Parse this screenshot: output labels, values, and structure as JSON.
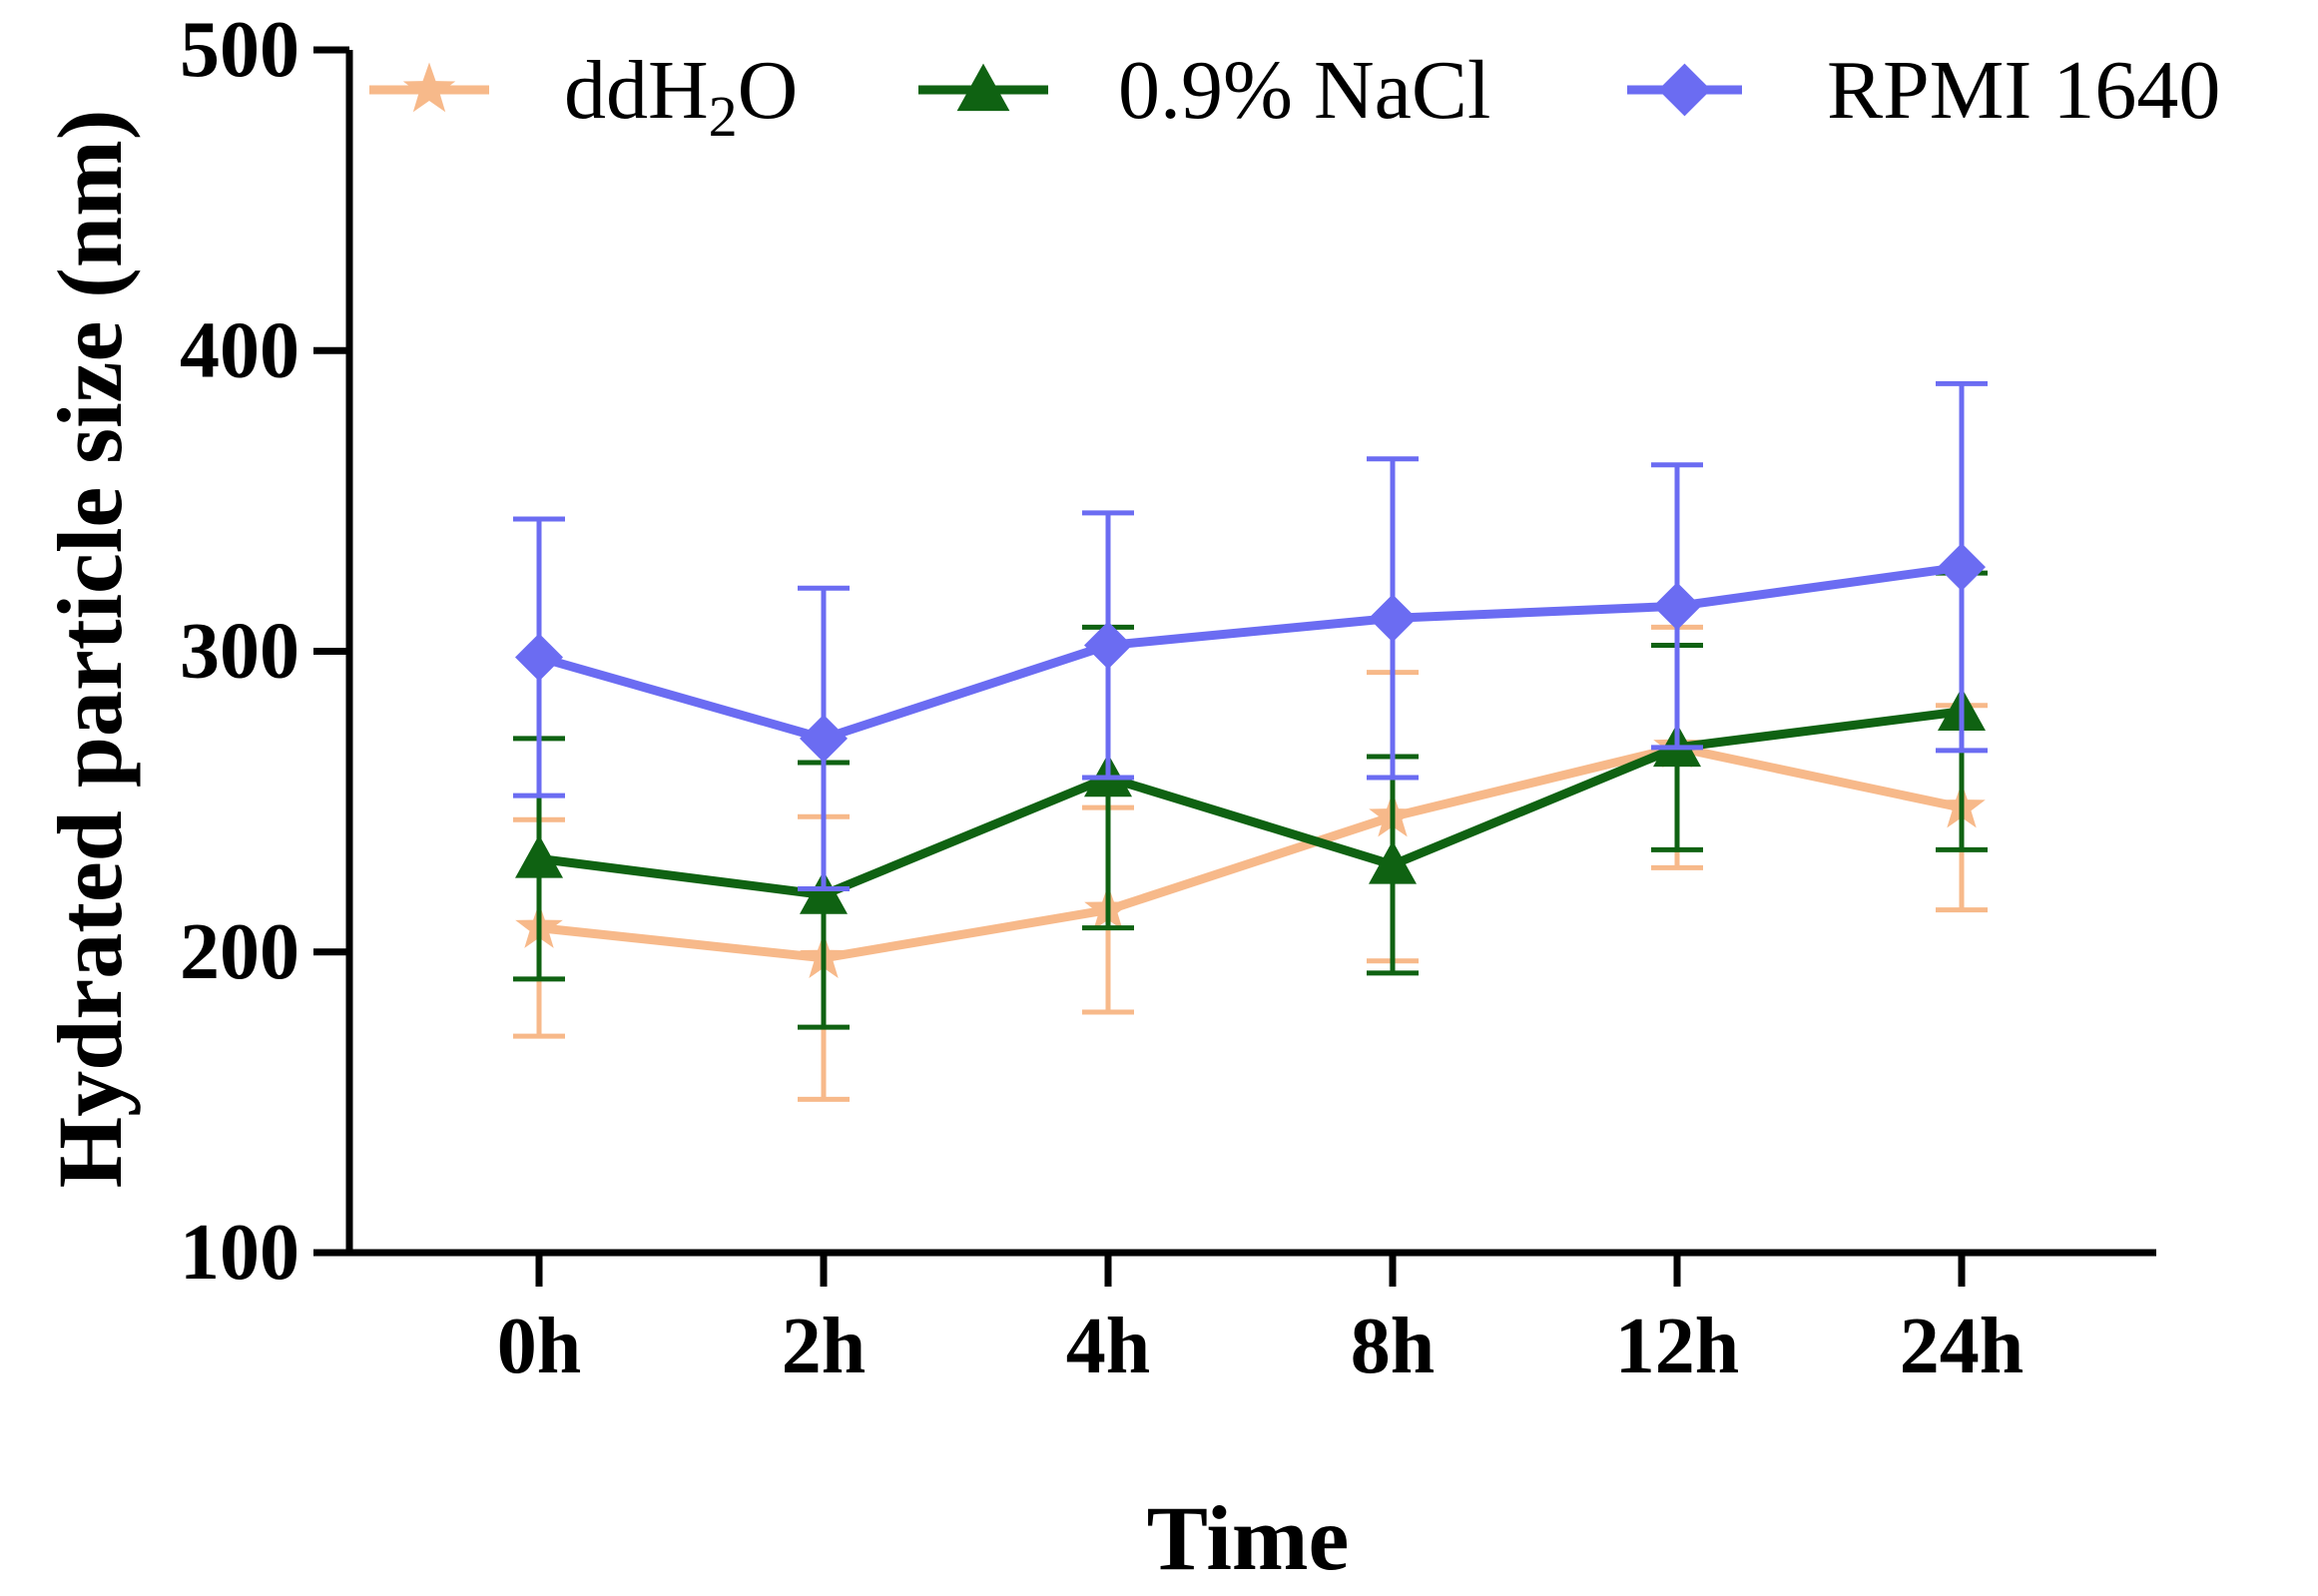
{
  "chart_data": {
    "type": "line",
    "title": "",
    "xlabel": "Time",
    "ylabel": "Hydrated particle size (nm)",
    "categories": [
      "0h",
      "2h",
      "4h",
      "8h",
      "12h",
      "24h"
    ],
    "ylim": [
      100,
      500
    ],
    "yticks": [
      "100",
      "200",
      "300",
      "400",
      "500"
    ],
    "grid": false,
    "legend_position": "top",
    "series": [
      {
        "name": "ddH₂O",
        "name_base": "ddH",
        "name_sub": "2",
        "name_tail": "O",
        "color": "#f7b98a",
        "marker": "star",
        "values": [
          208,
          198,
          214,
          245,
          268,
          248
        ],
        "errors": [
          36,
          47,
          34,
          48,
          40,
          34
        ]
      },
      {
        "name": "0.9% NaCl",
        "color": "#0f6212",
        "marker": "triangle",
        "values": [
          231,
          219,
          258,
          229,
          268,
          280
        ],
        "errors": [
          40,
          44,
          50,
          36,
          34,
          46
        ]
      },
      {
        "name": "RPMI 1640",
        "color": "#6b6cf2",
        "marker": "diamond",
        "values": [
          298,
          271,
          302,
          311,
          315,
          328
        ],
        "errors": [
          46,
          50,
          44,
          53,
          47,
          61
        ]
      }
    ]
  }
}
